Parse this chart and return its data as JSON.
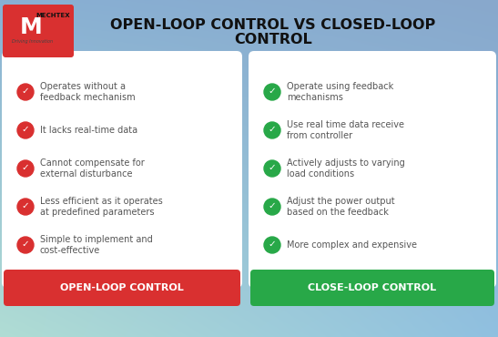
{
  "title_line1": "OPEN-LOOP CONTROL VS CLOSED-LOOP",
  "title_line2": "CONTROL",
  "bg_color": "#b8d8e8",
  "bg_color_tl": "#a8d8cc",
  "bg_color_tr": "#a0c8e0",
  "bg_color_bl": "#90b8d8",
  "bg_color_br": "#98b8d8",
  "card_color": "#ffffff",
  "left_items": [
    "Operates without a\nfeedback mechanism",
    "It lacks real-time data",
    "Cannot compensate for\nexternal disturbance",
    "Less efficient as it operates\nat predefined parameters",
    "Simple to implement and\ncost-effective"
  ],
  "right_items": [
    "Operate using feedback\nmechanisms",
    "Use real time data receive\nfrom controller",
    "Actively adjusts to varying\nload conditions",
    "Adjust the power output\nbased on the feedback",
    "More complex and expensive"
  ],
  "left_label": "OPEN-LOOP CONTROL",
  "right_label": "CLOSE-LOOP CONTROL",
  "left_label_color": "#d93030",
  "right_label_color": "#28a848",
  "left_check_color": "#d93030",
  "right_check_color": "#28a848",
  "title_color": "#111111",
  "item_text_color": "#555555",
  "logo_bg": "#d93030"
}
